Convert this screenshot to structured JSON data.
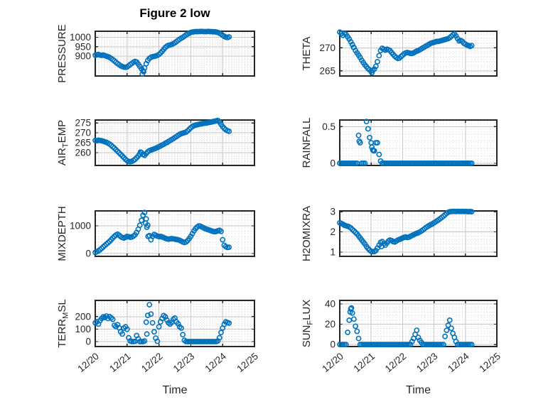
{
  "figure": {
    "title": "Figure 2 low",
    "xlabel": "Time",
    "background": "#ffffff",
    "marker_color": "#0072BD",
    "axis_color": "#262626",
    "grid_color": "#c6c6c6",
    "minor_grid_color": "#d6d6d6",
    "text_color": "#262626"
  },
  "chart_data": [
    {
      "id": "pressure",
      "type": "scatter",
      "name": "PRESSURE",
      "ylabel_parts": [
        {
          "text": "PRESSURE",
          "sub": false
        }
      ],
      "row": 0,
      "col": 0,
      "xlim": [
        0,
        5
      ],
      "ylim": [
        795,
        1032
      ],
      "yticks": [
        900,
        950,
        1000
      ],
      "y_minor_step": 10,
      "x_minor_step": 0.1,
      "x_unit": "days since 12/20",
      "x_tick_values": [
        0,
        1,
        2,
        3,
        4,
        5
      ],
      "x_tick_labels": [
        "12/20",
        "12/21",
        "12/22",
        "12/23",
        "12/24",
        "12/25"
      ],
      "show_x_tick_labels": false,
      "x_start": 0,
      "x_step": 0.05,
      "y": [
        905,
        907,
        909,
        906,
        904,
        906,
        903,
        900,
        897,
        893,
        888,
        882,
        875,
        868,
        861,
        855,
        849,
        845,
        842,
        841,
        843,
        849,
        856,
        862,
        868,
        872,
        869,
        858,
        846,
        833,
        823,
        838,
        860,
        877,
        888,
        894,
        897,
        899,
        901,
        904,
        909,
        917,
        926,
        936,
        946,
        953,
        957,
        959,
        962,
        966,
        971,
        977,
        984,
        990,
        995,
        1000,
        1006,
        1012,
        1017,
        1022,
        1026,
        1028,
        1029,
        1030,
        1030,
        1030,
        1031,
        1031,
        1030,
        1030,
        1030,
        1031,
        1030,
        1030,
        1029,
        1029,
        1028,
        1026,
        1022,
        1017,
        1011,
        1005,
        1001,
        999,
        1002
      ],
      "extra_points": [
        [
          1.48,
          805
        ],
        [
          1.52,
          818
        ]
      ]
    },
    {
      "id": "theta",
      "type": "scatter",
      "name": "THETA",
      "ylabel_parts": [
        {
          "text": "THETA",
          "sub": false
        }
      ],
      "row": 0,
      "col": 1,
      "xlim": [
        0,
        5
      ],
      "ylim": [
        263.9,
        273.6
      ],
      "yticks": [
        265,
        270
      ],
      "y_minor_step": 1,
      "x_minor_step": 0.1,
      "x_unit": "days since 12/20",
      "x_tick_values": [
        0,
        1,
        2,
        3,
        4,
        5
      ],
      "x_tick_labels": [
        "12/20",
        "12/21",
        "12/22",
        "12/23",
        "12/24",
        "12/25"
      ],
      "show_x_tick_labels": false,
      "x_start": 0,
      "x_step": 0.05,
      "y": [
        273.4,
        273.1,
        272.7,
        273.2,
        272.9,
        272.4,
        271.9,
        271.3,
        270.7,
        270.1,
        269.4,
        268.9,
        268.4,
        267.9,
        267.3,
        266.8,
        266.3,
        265.9,
        265.5,
        265.2,
        265.0,
        265.1,
        265.4,
        266.0,
        267.0,
        268.3,
        269.4,
        269.9,
        269.7,
        269.5,
        269.7,
        269.6,
        269.4,
        269.0,
        268.6,
        268.2,
        267.9,
        267.7,
        267.8,
        268.1,
        268.4,
        268.7,
        268.9,
        269.0,
        268.9,
        268.8,
        268.8,
        268.9,
        269.1,
        269.3,
        269.4,
        269.6,
        269.8,
        270.0,
        270.2,
        270.4,
        270.6,
        270.8,
        271.0,
        271.1,
        271.2,
        271.3,
        271.4,
        271.4,
        271.5,
        271.6,
        271.7,
        271.8,
        271.9,
        272.0,
        272.2,
        272.5,
        272.8,
        273.0,
        272.6,
        272.0,
        271.5,
        271.6,
        271.4,
        271.0,
        270.8,
        270.6,
        270.5,
        270.3,
        270.5
      ],
      "extra_points": [
        [
          1.02,
          264.6
        ],
        [
          0.44,
          270.1
        ]
      ]
    },
    {
      "id": "air_temp",
      "type": "scatter",
      "name": "AIR_TEMP",
      "ylabel_parts": [
        {
          "text": "AIR",
          "sub": false
        },
        {
          "text": "T",
          "sub": true
        },
        {
          "text": "EMP",
          "sub": false
        }
      ],
      "row": 1,
      "col": 0,
      "xlim": [
        0,
        5
      ],
      "ylim": [
        253.5,
        276.5
      ],
      "yticks": [
        260,
        265,
        270,
        275
      ],
      "y_minor_step": 1,
      "x_minor_step": 0.1,
      "x_unit": "days since 12/20",
      "x_tick_values": [
        0,
        1,
        2,
        3,
        4,
        5
      ],
      "x_tick_labels": [
        "12/20",
        "12/21",
        "12/22",
        "12/23",
        "12/24",
        "12/25"
      ],
      "show_x_tick_labels": false,
      "x_start": 0,
      "x_step": 0.05,
      "y": [
        266.2,
        266.0,
        266.3,
        266.1,
        266.0,
        265.8,
        265.5,
        265.2,
        264.8,
        264.3,
        263.7,
        263.0,
        262.3,
        261.5,
        260.7,
        259.9,
        259.1,
        258.3,
        257.5,
        256.6,
        255.9,
        255.5,
        255.4,
        255.6,
        256.0,
        256.6,
        257.4,
        258.3,
        259.3,
        260.0,
        259.2,
        258.6,
        259.5,
        260.4,
        261.0,
        261.3,
        261.6,
        261.9,
        262.2,
        262.6,
        263.0,
        263.4,
        263.8,
        264.2,
        264.7,
        265.1,
        265.6,
        266.1,
        266.6,
        267.1,
        267.6,
        268.1,
        268.7,
        269.2,
        269.6,
        269.9,
        270.1,
        270.4,
        271.0,
        271.8,
        272.6,
        273.2,
        273.6,
        273.9,
        274.1,
        274.3,
        274.5,
        274.6,
        274.8,
        274.9,
        275.0,
        275.2,
        275.3,
        275.5,
        275.7,
        275.9,
        276.1,
        276.3,
        275.5,
        274.3,
        273.2,
        272.3,
        271.6,
        271.1,
        270.8
      ],
      "extra_points": [
        [
          1.42,
          260.3
        ],
        [
          1.5,
          259.0
        ]
      ]
    },
    {
      "id": "rainfall",
      "type": "scatter",
      "name": "RAINFALL",
      "ylabel_parts": [
        {
          "text": "RAINFALL",
          "sub": false
        }
      ],
      "row": 1,
      "col": 1,
      "xlim": [
        0,
        5
      ],
      "ylim": [
        -0.03,
        0.59
      ],
      "yticks": [
        0,
        0.5
      ],
      "y_minor_step": 0.1,
      "x_minor_step": 0.1,
      "x_unit": "days since 12/20",
      "x_tick_values": [
        0,
        1,
        2,
        3,
        4,
        5
      ],
      "x_tick_labels": [
        "12/20",
        "12/21",
        "12/22",
        "12/23",
        "12/24",
        "12/25"
      ],
      "show_x_tick_labels": false,
      "x_start": 0,
      "x_step": 0.05,
      "y": [
        0,
        0,
        0,
        0,
        0,
        0,
        0,
        0,
        0,
        0,
        0,
        0,
        0.38,
        0.28,
        0,
        0,
        0,
        0.57,
        0.47,
        0.35,
        0.28,
        0.18,
        0.17,
        0.28,
        0.28,
        0.12,
        0.03,
        0,
        0,
        0,
        0,
        0,
        0,
        0,
        0,
        0,
        0,
        0,
        0,
        0,
        0,
        0,
        0,
        0,
        0,
        0,
        0,
        0,
        0,
        0,
        0,
        0,
        0,
        0,
        0,
        0,
        0,
        0,
        0,
        0,
        0,
        0,
        0,
        0,
        0,
        0,
        0,
        0,
        0,
        0,
        0,
        0,
        0,
        0,
        0,
        0,
        0,
        0,
        0,
        0,
        0,
        0,
        0,
        0,
        0
      ],
      "extra_points": [
        [
          1.02,
          0.22
        ],
        [
          1.08,
          0.17
        ],
        [
          0.62,
          0.3
        ]
      ]
    },
    {
      "id": "mixdepth",
      "type": "scatter",
      "name": "MIXDEPTH",
      "ylabel_parts": [
        {
          "text": "MIXDEPTH",
          "sub": false
        }
      ],
      "row": 2,
      "col": 0,
      "xlim": [
        0,
        5
      ],
      "ylim": [
        -100,
        1540
      ],
      "yticks": [
        0,
        1000
      ],
      "y_minor_step": 200,
      "x_minor_step": 0.1,
      "x_unit": "days since 12/20",
      "x_tick_values": [
        0,
        1,
        2,
        3,
        4,
        5
      ],
      "x_tick_labels": [
        "12/20",
        "12/21",
        "12/22",
        "12/23",
        "12/24",
        "12/25"
      ],
      "show_x_tick_labels": false,
      "x_start": 0,
      "x_step": 0.05,
      "y": [
        40,
        70,
        100,
        140,
        190,
        240,
        290,
        340,
        390,
        440,
        500,
        560,
        620,
        670,
        700,
        660,
        610,
        580,
        560,
        590,
        620,
        610,
        590,
        600,
        630,
        680,
        760,
        880,
        1020,
        1200,
        1380,
        1480,
        1250,
        1020,
        650,
        500,
        620,
        690,
        660,
        630,
        610,
        620,
        600,
        580,
        550,
        530,
        520,
        530,
        540,
        530,
        520,
        510,
        500,
        480,
        450,
        420,
        400,
        420,
        470,
        540,
        620,
        720,
        820,
        900,
        960,
        1000,
        990,
        960,
        930,
        900,
        880,
        860,
        840,
        820,
        800,
        790,
        800,
        820,
        840,
        800,
        500,
        300,
        250,
        220,
        230
      ],
      "extra_points": [
        [
          1.62,
          950
        ],
        [
          1.58,
          1100
        ],
        [
          1.66,
          620
        ]
      ]
    },
    {
      "id": "h2omixra",
      "type": "scatter",
      "name": "H2OMIXRA",
      "ylabel_parts": [
        {
          "text": "H2OMIXRA",
          "sub": false
        }
      ],
      "row": 2,
      "col": 1,
      "xlim": [
        0,
        5
      ],
      "ylim": [
        0.79,
        3.04
      ],
      "yticks": [
        1,
        2,
        3
      ],
      "y_minor_step": 0.2,
      "x_minor_step": 0.1,
      "x_unit": "days since 12/20",
      "x_tick_values": [
        0,
        1,
        2,
        3,
        4,
        5
      ],
      "x_tick_labels": [
        "12/20",
        "12/21",
        "12/22",
        "12/23",
        "12/24",
        "12/25"
      ],
      "show_x_tick_labels": false,
      "x_start": 0,
      "x_step": 0.05,
      "y": [
        2.45,
        2.42,
        2.38,
        2.33,
        2.3,
        2.28,
        2.25,
        2.2,
        2.12,
        2.05,
        1.98,
        1.9,
        1.8,
        1.7,
        1.6,
        1.5,
        1.4,
        1.28,
        1.18,
        1.1,
        1.04,
        1.02,
        1.03,
        1.08,
        1.2,
        1.35,
        1.48,
        1.52,
        1.42,
        1.35,
        1.45,
        1.55,
        1.6,
        1.57,
        1.52,
        1.5,
        1.55,
        1.6,
        1.63,
        1.66,
        1.7,
        1.73,
        1.75,
        1.72,
        1.74,
        1.78,
        1.82,
        1.86,
        1.9,
        1.93,
        1.96,
        2.0,
        2.05,
        2.1,
        2.16,
        2.22,
        2.27,
        2.32,
        2.36,
        2.4,
        2.45,
        2.5,
        2.55,
        2.6,
        2.66,
        2.72,
        2.78,
        2.85,
        2.92,
        2.97,
        3.0,
        3.01,
        3.02,
        3.02,
        3.01,
        3.02,
        3.02,
        3.01,
        3.02,
        3.01,
        3.02,
        3.01,
        3.0,
        3.01,
        3.0
      ],
      "extra_points": [
        [
          1.33,
          1.28
        ]
      ]
    },
    {
      "id": "terr_msl",
      "type": "scatter",
      "name": "TERR_MSL",
      "ylabel_parts": [
        {
          "text": "TERR",
          "sub": false
        },
        {
          "text": "M",
          "sub": true
        },
        {
          "text": "SL",
          "sub": false
        }
      ],
      "row": 3,
      "col": 0,
      "xlim": [
        0,
        5
      ],
      "ylim": [
        -40,
        330
      ],
      "yticks": [
        0,
        100,
        200
      ],
      "y_minor_step": 20,
      "x_minor_step": 0.1,
      "x_unit": "days since 12/20",
      "x_tick_values": [
        0,
        1,
        2,
        3,
        4,
        5
      ],
      "x_tick_labels": [
        "12/20",
        "12/21",
        "12/22",
        "12/23",
        "12/24",
        "12/25"
      ],
      "show_x_tick_labels": true,
      "x_start": 0,
      "x_step": 0.05,
      "y": [
        150,
        158,
        140,
        168,
        185,
        198,
        193,
        205,
        185,
        200,
        190,
        178,
        130,
        120,
        135,
        110,
        78,
        60,
        108,
        118,
        98,
        30,
        5,
        0,
        0,
        2,
        48,
        22,
        0,
        0,
        0,
        5,
        155,
        210,
        295,
        220,
        150,
        78,
        28,
        2,
        118,
        158,
        185,
        208,
        198,
        172,
        150,
        140,
        153,
        178,
        188,
        158,
        143,
        118,
        108,
        55,
        10,
        0,
        0,
        0,
        0,
        0,
        0,
        0,
        0,
        0,
        0,
        0,
        0,
        0,
        0,
        0,
        0,
        0,
        0,
        0,
        0,
        5,
        30,
        72,
        108,
        138,
        158,
        152,
        148
      ],
      "extra_points": [
        [
          1.62,
          60
        ]
      ]
    },
    {
      "id": "sun_flux",
      "type": "scatter",
      "name": "SUN_FLUX",
      "ylabel_parts": [
        {
          "text": "SUN",
          "sub": false
        },
        {
          "text": "F",
          "sub": true
        },
        {
          "text": "LUX",
          "sub": false
        }
      ],
      "row": 3,
      "col": 1,
      "xlim": [
        0,
        5
      ],
      "ylim": [
        -2,
        43.5
      ],
      "yticks": [
        0,
        20,
        40
      ],
      "y_minor_step": 4,
      "x_minor_step": 0.1,
      "x_unit": "days since 12/20",
      "x_tick_values": [
        0,
        1,
        2,
        3,
        4,
        5
      ],
      "x_tick_labels": [
        "12/20",
        "12/21",
        "12/22",
        "12/23",
        "12/24",
        "12/25"
      ],
      "show_x_tick_labels": true,
      "x_start": 0,
      "x_step": 0.05,
      "y": [
        0,
        0,
        0,
        0,
        0,
        12,
        24,
        35,
        31,
        25,
        18,
        13,
        6,
        0,
        0,
        0,
        0,
        0,
        0,
        0,
        0,
        0,
        0,
        0,
        0,
        0,
        0,
        0,
        0,
        0,
        0,
        0,
        0,
        0,
        0,
        0,
        0,
        0,
        0,
        0,
        0,
        0,
        0,
        0,
        0,
        0,
        3,
        6,
        10,
        14,
        7,
        4,
        2,
        0,
        0,
        0,
        0,
        0,
        0,
        0,
        0,
        0,
        0,
        0,
        0,
        0,
        0,
        8,
        14,
        19,
        24,
        16,
        11,
        7,
        3,
        0,
        0,
        0,
        0,
        0,
        0,
        0,
        0,
        0,
        0
      ],
      "extra_points": [
        [
          0.33,
          32
        ],
        [
          0.37,
          36
        ]
      ]
    }
  ]
}
